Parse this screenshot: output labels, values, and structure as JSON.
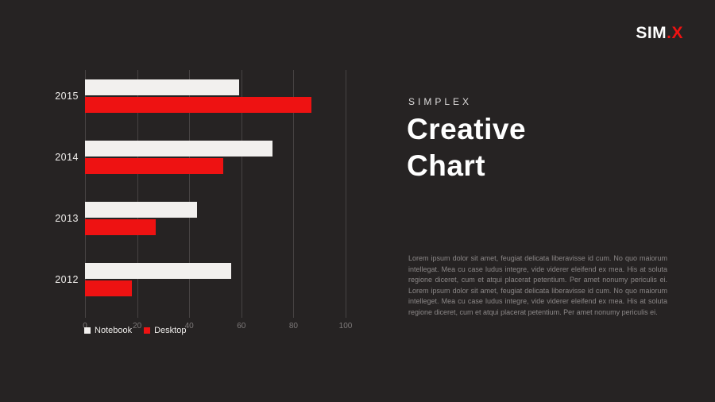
{
  "logo": {
    "text_main": "SIM",
    "text_accent": ".X"
  },
  "panel": {
    "kicker": "SIMPLEX",
    "title_line1": "Creative",
    "title_line2": "Chart",
    "body": "Lorem ipsum dolor sit amet, feugiat delicata liberavisse id cum. No quo maiorum intellegat. Mea cu case ludus integre, vide viderer eleifend ex mea. His at soluta regione diceret, cum et atqui placerat petentium. Per amet nonumy periculis ei. Lorem ipsum dolor sit amet, feugiat delicata liberavisse id cum. No quo maiorum intelleget. Mea cu case ludus integre, vide viderer eleifend ex mea. His at soluta regione diceret, cum et atqui placerat petentium. Per amet nonumy periculis ei."
  },
  "chart_data": {
    "type": "bar",
    "orientation": "horizontal",
    "categories": [
      "2015",
      "2014",
      "2013",
      "2012"
    ],
    "series": [
      {
        "name": "Notebook",
        "color": "#f2f0ee",
        "values": [
          59,
          72,
          43,
          56
        ]
      },
      {
        "name": "Desktop",
        "color": "#ee1212",
        "values": [
          87,
          53,
          27,
          18
        ]
      }
    ],
    "x_ticks": [
      0,
      20,
      40,
      60,
      80,
      100
    ],
    "xlim": [
      0,
      100
    ],
    "grid": "vertical",
    "legend_position": "bottom-left"
  },
  "colors": {
    "background": "#262323",
    "accent": "#ee1212",
    "bar_light": "#f2f0ee",
    "gridline": "#474343",
    "tick_text": "#7d7979",
    "body_text": "#8b8787"
  }
}
